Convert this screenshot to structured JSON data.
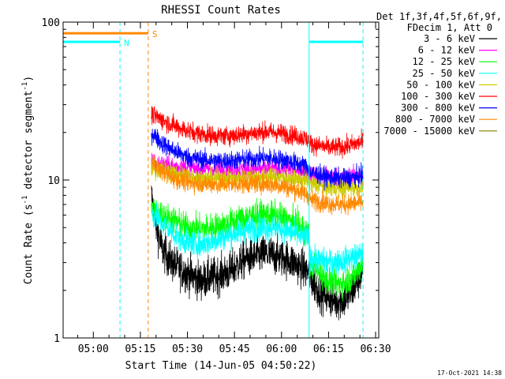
{
  "chart_data": {
    "type": "line",
    "title": "RHESSI Count Rates",
    "xlabel": "Start Time (14-Jun-05 04:50:22)",
    "ylabel_main": "Count Rate (s",
    "ylabel_sup1": "-1",
    "ylabel_mid": " detector segment",
    "ylabel_sup2": "-1",
    "ylabel_end": ")",
    "yscale": "log",
    "ylim": [
      1,
      100
    ],
    "xlim_minutes": [
      290.37,
      391.0
    ],
    "x_ticks": [
      {
        "label": "05:00",
        "minutes": 300
      },
      {
        "label": "05:15",
        "minutes": 315
      },
      {
        "label": "05:30",
        "minutes": 330
      },
      {
        "label": "05:45",
        "minutes": 345
      },
      {
        "label": "06:00",
        "minutes": 360
      },
      {
        "label": "06:15",
        "minutes": 375
      },
      {
        "label": "06:30",
        "minutes": 390
      }
    ],
    "y_ticks": [
      {
        "label": "1",
        "value": 1
      },
      {
        "label": "10",
        "value": 10
      },
      {
        "label": "100",
        "value": 100
      }
    ],
    "legend_header": [
      "Det 1f,3f,4f,5f,6f,9f,",
      "FDecim 1, Att 0"
    ],
    "legend_position": "right",
    "footer_date": "17-Oct-2021 14:38",
    "data_start_minutes": 318.5,
    "data_end_minutes": 386.0,
    "series": [
      {
        "name": "3 - 6 keV",
        "color": "#000000",
        "noise": 0.06,
        "x": [
          318.5,
          320,
          322,
          325,
          328,
          331,
          334,
          337,
          340,
          343,
          346,
          349,
          352,
          355,
          358,
          361,
          364,
          366,
          368.8,
          369,
          372,
          375,
          378,
          381,
          384,
          386
        ],
        "values": [
          8,
          5.2,
          3.6,
          3.0,
          2.7,
          2.5,
          2.3,
          2.4,
          2.5,
          2.6,
          2.9,
          3.2,
          3.3,
          3.4,
          3.3,
          3.2,
          3.0,
          2.8,
          2.6,
          2.4,
          2.0,
          1.8,
          1.7,
          1.8,
          2.2,
          2.8
        ]
      },
      {
        "name": "6 - 12 keV",
        "color": "#ff00ff",
        "noise": 0.03,
        "x": [
          318.5,
          322,
          326,
          330,
          335,
          340,
          345,
          350,
          355,
          360,
          365,
          368.8,
          369,
          375,
          380,
          386
        ],
        "values": [
          13,
          12.5,
          12.2,
          12,
          11.8,
          11.6,
          11.5,
          11.6,
          11.8,
          11.7,
          11.5,
          11.2,
          10.8,
          10.5,
          10.4,
          10.6
        ]
      },
      {
        "name": "12 - 25 keV",
        "color": "#00ff00",
        "noise": 0.045,
        "x": [
          318.5,
          322,
          326,
          330,
          334,
          338,
          342,
          346,
          350,
          354,
          358,
          362,
          366,
          368.8,
          369,
          372,
          375,
          378,
          381,
          384,
          386
        ],
        "values": [
          6.5,
          6.0,
          5.5,
          5.0,
          4.9,
          5.0,
          5.2,
          5.6,
          5.9,
          6.0,
          5.9,
          5.6,
          5.0,
          4.6,
          3.0,
          2.6,
          2.3,
          2.2,
          2.3,
          2.6,
          3.1
        ]
      },
      {
        "name": "25 - 50 keV",
        "color": "#00ffff",
        "noise": 0.04,
        "x": [
          318.5,
          322,
          326,
          330,
          334,
          338,
          342,
          346,
          350,
          354,
          358,
          362,
          366,
          368.8,
          369,
          375,
          380,
          386
        ],
        "values": [
          6.3,
          5.3,
          4.5,
          4.0,
          3.9,
          4.1,
          4.4,
          4.7,
          4.9,
          5.0,
          5.0,
          4.8,
          4.4,
          4.2,
          3.2,
          3.0,
          3.1,
          3.4
        ]
      },
      {
        "name": "50 - 100 keV",
        "color": "#cccc00",
        "noise": 0.03,
        "x": [
          318.5,
          322,
          326,
          330,
          335,
          340,
          345,
          350,
          355,
          360,
          365,
          368.8,
          369,
          375,
          380,
          386
        ],
        "values": [
          12,
          11.5,
          11,
          10.6,
          10.3,
          10.2,
          10.3,
          10.5,
          10.6,
          10.4,
          10.1,
          9.8,
          9.4,
          9.0,
          8.9,
          9.1
        ]
      },
      {
        "name": "100 - 300 keV",
        "color": "#ff0000",
        "noise": 0.03,
        "x": [
          318.5,
          322,
          326,
          330,
          335,
          340,
          345,
          350,
          355,
          360,
          365,
          368.8,
          369,
          375,
          380,
          386
        ],
        "values": [
          26,
          24,
          22,
          20.5,
          19.5,
          19,
          19.2,
          19.8,
          20.2,
          19.8,
          19,
          18,
          17,
          16,
          16.2,
          17.5
        ]
      },
      {
        "name": "300 - 800 keV",
        "color": "#0000ff",
        "noise": 0.03,
        "x": [
          318.5,
          322,
          326,
          330,
          335,
          340,
          345,
          350,
          355,
          360,
          365,
          368.8,
          369,
          375,
          380,
          386
        ],
        "values": [
          20,
          17,
          15.2,
          14,
          13.4,
          13.2,
          13.3,
          13.6,
          13.8,
          13.5,
          12.8,
          12,
          11.2,
          10.4,
          10.2,
          10.6
        ]
      },
      {
        "name": "800 - 7000 keV",
        "color": "#ff8800",
        "noise": 0.03,
        "x": [
          318.5,
          322,
          326,
          330,
          335,
          340,
          345,
          350,
          355,
          360,
          365,
          368.8,
          369,
          375,
          380,
          386
        ],
        "values": [
          13,
          11.3,
          10.2,
          9.7,
          9.5,
          9.4,
          9.4,
          9.5,
          9.5,
          9.2,
          8.6,
          8.0,
          7.5,
          7.1,
          7.0,
          7.2
        ]
      },
      {
        "name": "7000 - 15000 keV",
        "color": "#808000",
        "noise": 0.03,
        "x": [],
        "values": []
      }
    ],
    "annotations": [
      {
        "kind": "interval",
        "letter": "N",
        "color": "#00ffff",
        "level": 75,
        "x_start": 290.37,
        "x_end": 308.5
      },
      {
        "kind": "interval",
        "letter": "S",
        "color": "#ff8800",
        "level": 85,
        "x_start": 290.37,
        "x_end": 317.5
      },
      {
        "kind": "interval",
        "letter": "",
        "color": "#00ffff",
        "level": 75,
        "x_start": 368.8,
        "x_end": 386.0
      }
    ],
    "vlines": [
      {
        "x": 308.5,
        "color": "#00ffff",
        "style": "dashed"
      },
      {
        "x": 317.5,
        "color": "#ff8800",
        "style": "dashed"
      },
      {
        "x": 368.8,
        "color": "#00ffff",
        "style": "solid"
      },
      {
        "x": 386.0,
        "color": "#00ffff",
        "style": "dashed"
      },
      {
        "x": 290.37,
        "color": "#00ffff",
        "style": "solid"
      }
    ]
  }
}
